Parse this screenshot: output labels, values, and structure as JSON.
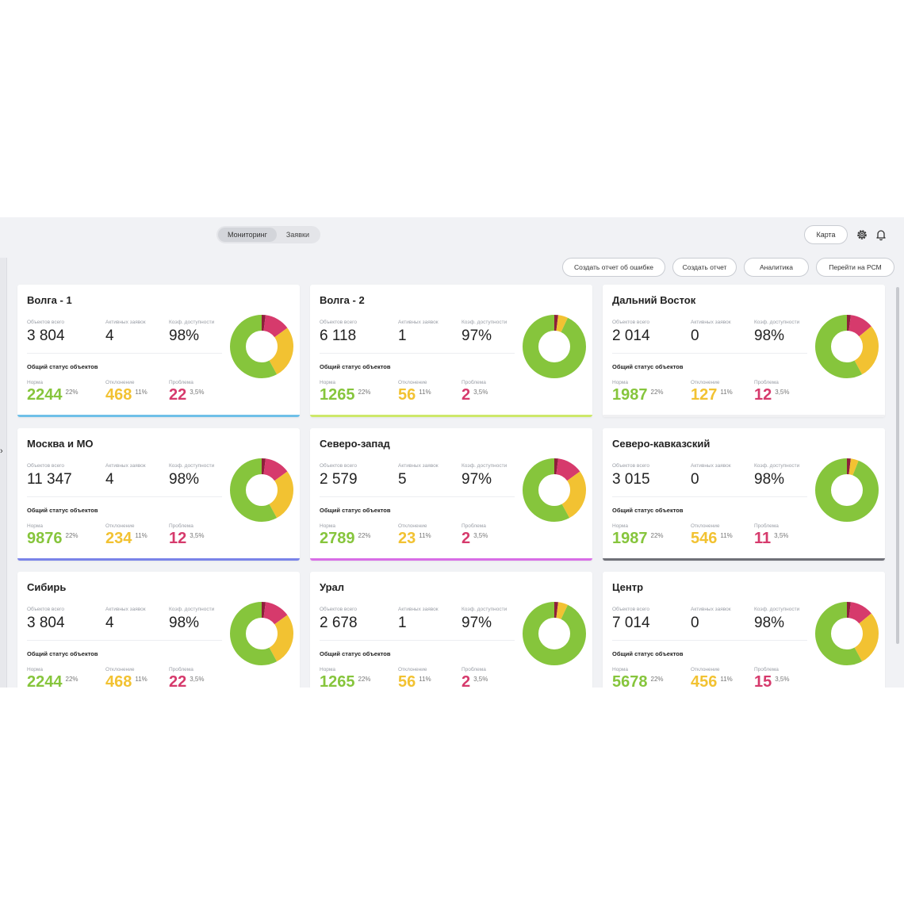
{
  "header": {
    "tabs": [
      {
        "label": "Мониторинг",
        "active": true
      },
      {
        "label": "Заявки",
        "active": false
      }
    ],
    "map_button": "Карта",
    "icons": [
      "gear-icon",
      "bell-icon"
    ]
  },
  "actions": {
    "report_error": "Создать отчет об ошибке",
    "create_report": "Создать отчет",
    "analytics": "Аналитика",
    "goto_rsm": "Перейти на РСМ"
  },
  "labels": {
    "objects_total": "Объектов всего",
    "active_requests": "Активных заявок",
    "availability": "Коэф. доступности",
    "overall_status": "Общий статус объектов",
    "norm": "Норма",
    "deviation": "Отклонение",
    "problem": "Проблема"
  },
  "colors": {
    "norm": "#86c53c",
    "deviation": "#f2c232",
    "problem": "#d63a6c",
    "problem_dark": "#8e1f3b"
  },
  "cards": [
    {
      "title": "Волга - 1",
      "objects": "3 804",
      "requests": "4",
      "availability": "98%",
      "norm": "2244",
      "norm_pct": "22%",
      "dev": "468",
      "dev_pct": "11%",
      "prob": "22",
      "prob_pct": "3,5%",
      "bar": "#6fc0e8",
      "donut": [
        0.58,
        0.27,
        0.13,
        0.02
      ]
    },
    {
      "title": "Волга - 2",
      "objects": "6 118",
      "requests": "1",
      "availability": "97%",
      "norm": "1265",
      "norm_pct": "22%",
      "dev": "56",
      "dev_pct": "11%",
      "prob": "2",
      "prob_pct": "3,5%",
      "bar": "#cde86a",
      "donut": [
        0.93,
        0.05,
        0.0,
        0.02
      ]
    },
    {
      "title": "Дальний Восток",
      "objects": "2 014",
      "requests": "0",
      "availability": "98%",
      "norm": "1987",
      "norm_pct": "22%",
      "dev": "127",
      "dev_pct": "11%",
      "prob": "12",
      "prob_pct": "3,5%",
      "bar": "#f0f0f2",
      "donut": [
        0.58,
        0.28,
        0.12,
        0.02
      ]
    },
    {
      "title": "Москва и МО",
      "objects": "11 347",
      "requests": "4",
      "availability": "98%",
      "norm": "9876",
      "norm_pct": "22%",
      "dev": "234",
      "dev_pct": "11%",
      "prob": "12",
      "prob_pct": "3,5%",
      "bar": "#7a83e8",
      "donut": [
        0.58,
        0.27,
        0.13,
        0.02
      ]
    },
    {
      "title": "Северо-запад",
      "objects": "2 579",
      "requests": "5",
      "availability": "97%",
      "norm": "2789",
      "norm_pct": "22%",
      "dev": "23",
      "dev_pct": "11%",
      "prob": "2",
      "prob_pct": "3,5%",
      "bar": "#d86ee6",
      "donut": [
        0.58,
        0.27,
        0.13,
        0.02
      ]
    },
    {
      "title": "Северо-кавказский",
      "objects": "3 015",
      "requests": "0",
      "availability": "98%",
      "norm": "1987",
      "norm_pct": "22%",
      "dev": "546",
      "dev_pct": "11%",
      "prob": "11",
      "prob_pct": "3,5%",
      "bar": "#6f7078",
      "donut": [
        0.94,
        0.04,
        0.0,
        0.02
      ]
    },
    {
      "title": "Сибирь",
      "objects": "3 804",
      "requests": "4",
      "availability": "98%",
      "norm": "2244",
      "norm_pct": "22%",
      "dev": "468",
      "dev_pct": "11%",
      "prob": "22",
      "prob_pct": "3,5%",
      "bar": "#ffffff",
      "donut": [
        0.58,
        0.27,
        0.13,
        0.02
      ]
    },
    {
      "title": "Урал",
      "objects": "2 678",
      "requests": "1",
      "availability": "97%",
      "norm": "1265",
      "norm_pct": "22%",
      "dev": "56",
      "dev_pct": "11%",
      "prob": "2",
      "prob_pct": "3,5%",
      "bar": "#ffffff",
      "donut": [
        0.93,
        0.05,
        0.0,
        0.02
      ]
    },
    {
      "title": "Центр",
      "objects": "7 014",
      "requests": "0",
      "availability": "98%",
      "norm": "5678",
      "norm_pct": "22%",
      "dev": "456",
      "dev_pct": "11%",
      "prob": "15",
      "prob_pct": "3,5%",
      "bar": "#ffffff",
      "donut": [
        0.58,
        0.28,
        0.12,
        0.02
      ]
    }
  ]
}
